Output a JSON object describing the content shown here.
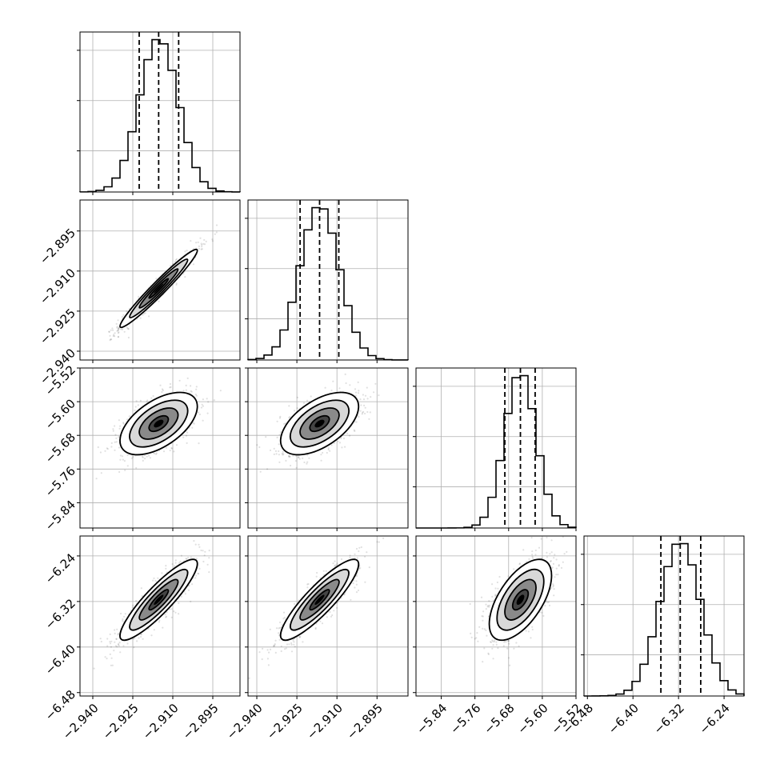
{
  "chart_data": {
    "type": "corner",
    "params": [
      {
        "mean": -2.9153,
        "sd": 0.00725,
        "range": [
          -2.9448,
          -2.8848
        ],
        "ticks": [
          -2.94,
          -2.925,
          -2.91,
          -2.895
        ],
        "tick_labels": [
          "−2.940",
          "−2.925",
          "−2.910",
          "−2.895"
        ],
        "quantiles": [
          -2.9226,
          -2.9153,
          -2.9078
        ]
      },
      {
        "mean": -2.9165,
        "sd": 0.0073,
        "range": [
          -2.9433,
          -2.8834
        ],
        "ticks": [
          -2.94,
          -2.925,
          -2.91,
          -2.895
        ],
        "tick_labels": [
          "−2.940",
          "−2.925",
          "−2.910",
          "−2.895"
        ],
        "quantiles": [
          -2.9238,
          -2.9165,
          -2.9093
        ]
      },
      {
        "mean": -5.652,
        "sd": 0.037,
        "range": [
          -5.9,
          -5.52
        ],
        "ticks": [
          -5.84,
          -5.76,
          -5.68,
          -5.6,
          -5.52
        ],
        "tick_labels": [
          "−5.84",
          "−5.76",
          "−5.68",
          "−5.60",
          "−5.52"
        ],
        "quantiles": [
          -5.689,
          -5.652,
          -5.617
        ]
      },
      {
        "mean": -6.317,
        "sd": 0.0355,
        "range": [
          -6.486,
          -6.205
        ],
        "ticks": [
          -6.48,
          -6.4,
          -6.32,
          -6.24
        ],
        "tick_labels": [
          "−6.48",
          "−6.40",
          "−6.32",
          "−6.24"
        ],
        "quantiles": [
          -6.351,
          -6.317,
          -6.281
        ]
      }
    ],
    "correlations": [
      [
        1.0,
        0.97,
        0.55,
        0.89
      ],
      [
        0.97,
        1.0,
        0.55,
        0.88
      ],
      [
        0.55,
        0.55,
        1.0,
        0.6
      ],
      [
        0.89,
        0.88,
        0.6,
        1.0
      ]
    ],
    "contour_sigma_levels": [
      0.5,
      1.0,
      1.5,
      2.0
    ],
    "grid": true
  }
}
